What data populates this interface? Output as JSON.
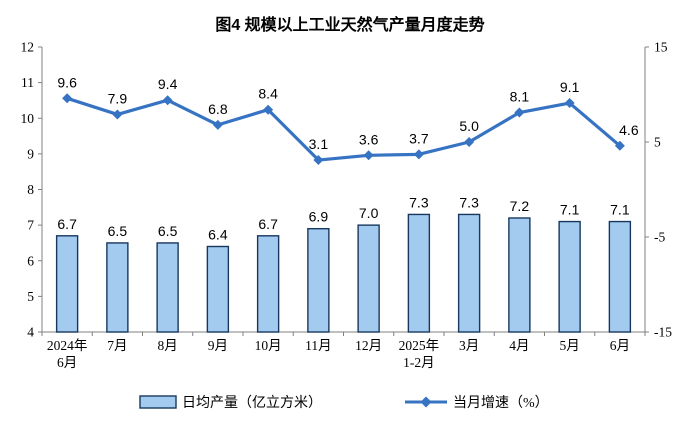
{
  "chart_data": {
    "type": "combo-bar-line",
    "title": "图4  规模以上工业天然气产量月度走势",
    "categories": [
      "2024年6月",
      "7月",
      "8月",
      "9月",
      "10月",
      "11月",
      "12月",
      "2025年1-2月",
      "3月",
      "4月",
      "5月",
      "6月"
    ],
    "categories_display": [
      [
        "2024年",
        "6月"
      ],
      [
        "7月"
      ],
      [
        "8月"
      ],
      [
        "9月"
      ],
      [
        "10月"
      ],
      [
        "11月"
      ],
      [
        "12月"
      ],
      [
        "2025年",
        "1-2月"
      ],
      [
        "3月"
      ],
      [
        "4月"
      ],
      [
        "5月"
      ],
      [
        "6月"
      ]
    ],
    "series": [
      {
        "name": "日均产量（亿立方米）",
        "type": "bar",
        "axis": "left",
        "values": [
          6.7,
          6.5,
          6.5,
          6.4,
          6.7,
          6.9,
          7.0,
          7.3,
          7.3,
          7.2,
          7.1,
          7.1
        ]
      },
      {
        "name": "当月增速（%）",
        "type": "line",
        "axis": "right",
        "values": [
          9.6,
          7.9,
          9.4,
          6.8,
          8.4,
          3.1,
          3.6,
          3.7,
          5.0,
          8.1,
          9.1,
          4.6
        ]
      }
    ],
    "left_axis": {
      "min": 4,
      "max": 12,
      "ticks": [
        4,
        5,
        6,
        7,
        8,
        9,
        10,
        11,
        12
      ]
    },
    "right_axis": {
      "min": -15,
      "max": 15,
      "ticks": [
        -15,
        -5,
        5,
        15
      ]
    },
    "grid": "off",
    "legend_position": "bottom"
  },
  "colors": {
    "bar_fill": "#A3CBEF",
    "bar_border": "#17375E",
    "line": "#3773C3",
    "axis_line": "#808080",
    "text": "#000000",
    "background": "#FFFFFF"
  }
}
